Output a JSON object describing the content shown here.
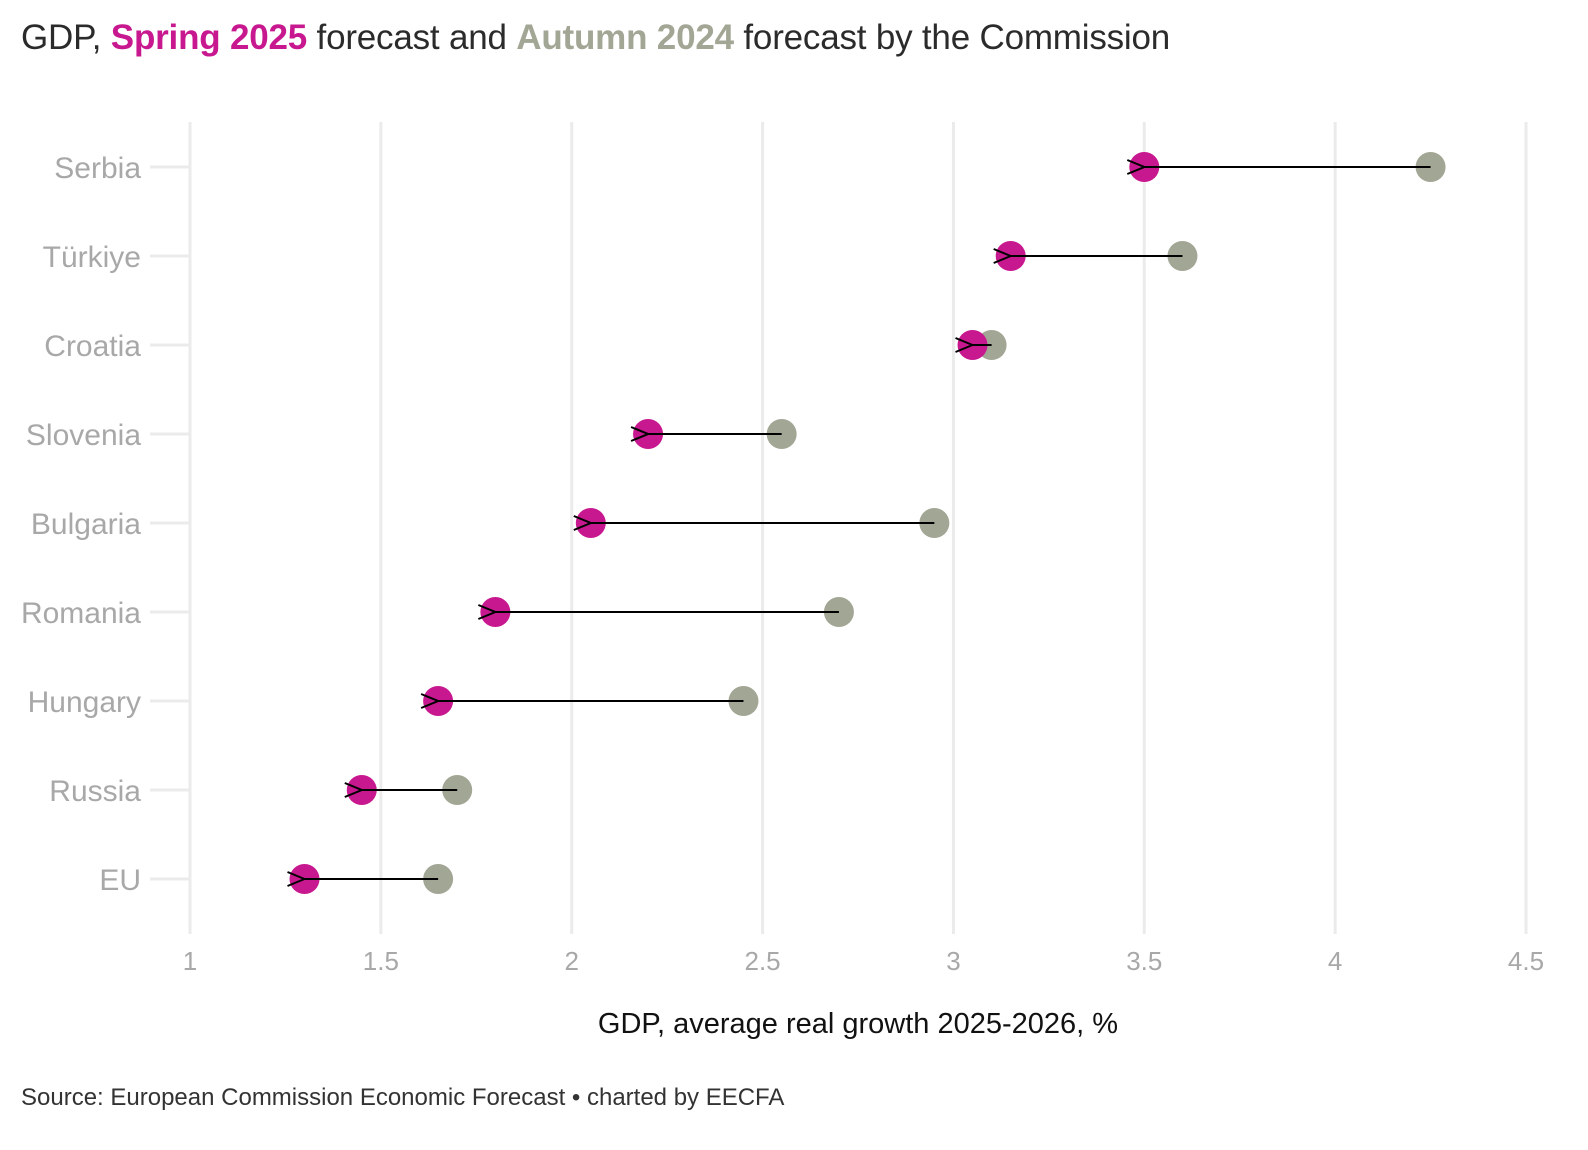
{
  "title": {
    "prefix": "GDP, ",
    "series1": "Spring 2025",
    "middle": " forecast and ",
    "series2": "Autumn 2024",
    "suffix": " forecast by the Commission"
  },
  "source": "Source: European Commission Economic Forecast • charted by EECFA",
  "colors": {
    "spring": "#c8188f",
    "autumn": "#a2a694",
    "arrow": "#000000",
    "grid": "#ebebeb",
    "label": "#a8a8a8"
  },
  "chart_data": {
    "type": "dumbbell",
    "xlabel": "GDP, average real growth 2025-2026, %",
    "ylabel": "",
    "xlim": [
      1,
      4.5
    ],
    "xticks": [
      "1",
      "1.5",
      "2",
      "2.5",
      "3",
      "3.5",
      "4",
      "4.5"
    ],
    "categories": [
      "Serbia",
      "Türkiye",
      "Croatia",
      "Slovenia",
      "Bulgaria",
      "Romania",
      "Hungary",
      "Russia",
      "EU"
    ],
    "series": [
      {
        "name": "Spring 2025",
        "values": [
          3.5,
          3.15,
          3.05,
          2.2,
          2.05,
          1.8,
          1.65,
          1.45,
          1.3
        ]
      },
      {
        "name": "Autumn 2024",
        "values": [
          4.25,
          3.6,
          3.1,
          2.55,
          2.95,
          2.7,
          2.45,
          1.7,
          1.65
        ]
      }
    ],
    "arrows": "from Autumn 2024 to Spring 2025",
    "grid": true
  }
}
